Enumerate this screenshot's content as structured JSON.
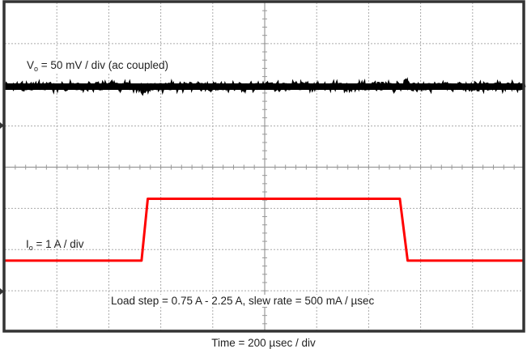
{
  "chart_data": {
    "type": "line",
    "title": "",
    "plot_kind": "oscilloscope capture",
    "grid": {
      "divisions_x": 10,
      "divisions_y": 8,
      "on": true,
      "style": "dotted"
    },
    "xlabel": "Time = 200 µsec / div",
    "x_scale": "200 µsec / div",
    "annotations": [
      "Vo = 50 mV / div (ac coupled)",
      "Io = 1 A / div",
      "Load step = 0.75 A - 2.25 A, slew rate = 500 mA / µsec",
      "Time = 200 µsec / div"
    ],
    "series": [
      {
        "name": "Vo",
        "scale": "50 mV / div (ac coupled)",
        "color": "#000000",
        "x_div": [
          0,
          2.6,
          2.65,
          2.7,
          2.8,
          7.6,
          7.65,
          7.75,
          7.85,
          10
        ],
        "y_div_rel_ground": [
          0,
          0,
          -0.2,
          -0.15,
          0,
          0,
          0.15,
          0.1,
          0,
          0
        ],
        "description": "Flat noisy trace with small undershoot at load step rise and small overshoot at load step fall"
      },
      {
        "name": "Io",
        "scale": "1 A / div",
        "color": "#ff0000",
        "x_div": [
          0,
          2.63,
          2.75,
          7.6,
          7.75,
          10
        ],
        "y_amps": [
          0.75,
          0.75,
          2.25,
          2.25,
          0.75,
          0.75
        ],
        "description": "Load step from 0.75 A to 2.25 A, rising at ~2.63 div, falling at ~7.6 div"
      }
    ],
    "ground_markers_y_px": [
      155,
      360
    ]
  },
  "labels": {
    "vo_prefix": "V",
    "vo_sub": "o",
    "vo_rest": " = 50 mV / div (ac coupled)",
    "io_prefix": "I",
    "io_sub": "o",
    "io_rest": " = 1 A / div",
    "step": "Load step = 0.75 A - 2.25 A, slew rate = 500 mA / µsec",
    "time": "Time = 200 µsec / div"
  },
  "colors": {
    "frame": "#333333",
    "grid": "#aaaaaa",
    "vo_trace": "#000000",
    "io_trace": "#ff0000"
  }
}
